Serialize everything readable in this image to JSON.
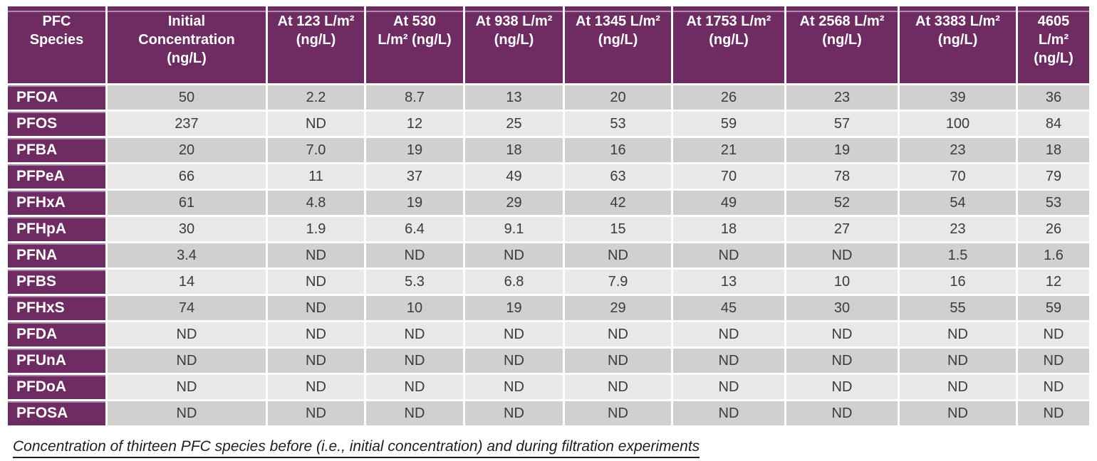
{
  "chart_data": {
    "type": "table",
    "title": "Concentration of thirteen PFC species before (i.e., initial concentration) and during filtration experiments",
    "columns": [
      "PFC\nSpecies",
      "Initial\nConcentration\n(ng/L)",
      "At 123 L/m²\n(ng/L)",
      "At 530\nL/m² (ng/L)",
      "At 938 L/m²\n(ng/L)",
      "At 1345 L/m²\n(ng/L)",
      "At 1753 L/m²\n(ng/L)",
      "At 2568 L/m²\n(ng/L)",
      "At 3383 L/m²\n(ng/L)",
      "4605\nL/m²\n(ng/L)"
    ],
    "rows": [
      {
        "species": "PFOA",
        "values": [
          "50",
          "2.2",
          "8.7",
          "13",
          "20",
          "26",
          "23",
          "39",
          "36"
        ]
      },
      {
        "species": "PFOS",
        "values": [
          "237",
          "ND",
          "12",
          "25",
          "53",
          "59",
          "57",
          "100",
          "84"
        ]
      },
      {
        "species": "PFBA",
        "values": [
          "20",
          "7.0",
          "19",
          "18",
          "16",
          "21",
          "19",
          "23",
          "18"
        ]
      },
      {
        "species": "PFPeA",
        "values": [
          "66",
          "11",
          "37",
          "49",
          "63",
          "70",
          "78",
          "70",
          "79"
        ]
      },
      {
        "species": "PFHxA",
        "values": [
          "61",
          "4.8",
          "19",
          "29",
          "42",
          "49",
          "52",
          "54",
          "53"
        ]
      },
      {
        "species": "PFHpA",
        "values": [
          "30",
          "1.9",
          "6.4",
          "9.1",
          "15",
          "18",
          "27",
          "23",
          "26"
        ]
      },
      {
        "species": "PFNA",
        "values": [
          "3.4",
          "ND",
          "ND",
          "ND",
          "ND",
          "ND",
          "ND",
          "1.5",
          "1.6"
        ]
      },
      {
        "species": "PFBS",
        "values": [
          "14",
          "ND",
          "5.3",
          "6.8",
          "7.9",
          "13",
          "10",
          "16",
          "12"
        ]
      },
      {
        "species": "PFHxS",
        "values": [
          "74",
          "ND",
          "10",
          "19",
          "29",
          "45",
          "30",
          "55",
          "59"
        ]
      },
      {
        "species": "PFDA",
        "values": [
          "ND",
          "ND",
          "ND",
          "ND",
          "ND",
          "ND",
          "ND",
          "ND",
          "ND"
        ]
      },
      {
        "species": "PFUnA",
        "values": [
          "ND",
          "ND",
          "ND",
          "ND",
          "ND",
          "ND",
          "ND",
          "ND",
          "ND"
        ]
      },
      {
        "species": "PFDoA",
        "values": [
          "ND",
          "ND",
          "ND",
          "ND",
          "ND",
          "ND",
          "ND",
          "ND",
          "ND"
        ]
      },
      {
        "species": "PFOSA",
        "values": [
          "ND",
          "ND",
          "ND",
          "ND",
          "ND",
          "ND",
          "ND",
          "ND",
          "ND"
        ]
      }
    ]
  },
  "caption": {
    "text": "Concentration of thirteen PFC species before (i.e., initial concentration) and during filtration experiments"
  },
  "colors": {
    "header_bg": "#6e2c63",
    "header_text": "#ffffff",
    "row_dark_bg": "#d2cfcf",
    "row_light_bg": "#e9e7e7",
    "value_text": "#3b3b3b",
    "caption_text": "#1f1f1f"
  }
}
